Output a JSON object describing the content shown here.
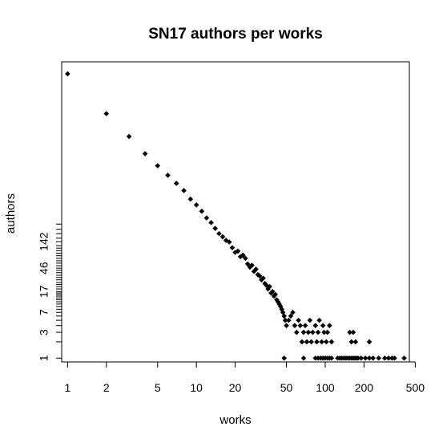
{
  "chart_data": {
    "type": "scatter",
    "title": "SN17 authors per works",
    "xlabel": "works",
    "ylabel": "authors",
    "x_scale": "log",
    "y_scale": "log",
    "xlim": [
      0.9,
      450
    ],
    "ylim": [
      0.85,
      300000
    ],
    "x_ticks": [
      1,
      2,
      5,
      10,
      20,
      50,
      100,
      200,
      500
    ],
    "x_tick_labels": [
      "1",
      "2",
      "5",
      "10",
      "20",
      "50",
      "100",
      "200",
      "500"
    ],
    "y_ticks": [
      1,
      3,
      7,
      17,
      46,
      142
    ],
    "y_tick_labels": [
      "1",
      "3",
      "7",
      "17",
      "46",
      "142"
    ],
    "y_rug": [
      1,
      2,
      3,
      4,
      5,
      6,
      7,
      8,
      9,
      10,
      11,
      12,
      13,
      14,
      15,
      16,
      17,
      19,
      21,
      23,
      25,
      28,
      31,
      34,
      38,
      42,
      46,
      51,
      57,
      63,
      70,
      78,
      87,
      97,
      108,
      120,
      142,
      165,
      200,
      240,
      300
    ],
    "grid": false,
    "legend": "none",
    "marker_color": "#000000",
    "points": [
      {
        "x": 1,
        "y": 180000
      },
      {
        "x": 2,
        "y": 33000
      },
      {
        "x": 3,
        "y": 12500
      },
      {
        "x": 4,
        "y": 6000
      },
      {
        "x": 5,
        "y": 3600
      },
      {
        "x": 6,
        "y": 2400
      },
      {
        "x": 7,
        "y": 1700
      },
      {
        "x": 8,
        "y": 1250
      },
      {
        "x": 9,
        "y": 870
      },
      {
        "x": 10,
        "y": 680
      },
      {
        "x": 11,
        "y": 520
      },
      {
        "x": 12,
        "y": 390
      },
      {
        "x": 13,
        "y": 320
      },
      {
        "x": 14,
        "y": 250
      },
      {
        "x": 15,
        "y": 200
      },
      {
        "x": 16,
        "y": 175
      },
      {
        "x": 17,
        "y": 150
      },
      {
        "x": 18,
        "y": 140
      },
      {
        "x": 19,
        "y": 110
      },
      {
        "x": 20,
        "y": 90
      },
      {
        "x": 21,
        "y": 95
      },
      {
        "x": 22,
        "y": 75
      },
      {
        "x": 23,
        "y": 80
      },
      {
        "x": 24,
        "y": 70
      },
      {
        "x": 25,
        "y": 55
      },
      {
        "x": 26,
        "y": 48
      },
      {
        "x": 27,
        "y": 52
      },
      {
        "x": 28,
        "y": 40
      },
      {
        "x": 29,
        "y": 44
      },
      {
        "x": 30,
        "y": 35
      },
      {
        "x": 31,
        "y": 33
      },
      {
        "x": 32,
        "y": 28
      },
      {
        "x": 33,
        "y": 30
      },
      {
        "x": 34,
        "y": 24
      },
      {
        "x": 35,
        "y": 22
      },
      {
        "x": 36,
        "y": 19
      },
      {
        "x": 37,
        "y": 21
      },
      {
        "x": 38,
        "y": 16
      },
      {
        "x": 39,
        "y": 17
      },
      {
        "x": 40,
        "y": 14
      },
      {
        "x": 41,
        "y": 15
      },
      {
        "x": 42,
        "y": 12
      },
      {
        "x": 43,
        "y": 11
      },
      {
        "x": 44,
        "y": 10
      },
      {
        "x": 45,
        "y": 9
      },
      {
        "x": 46,
        "y": 8
      },
      {
        "x": 47,
        "y": 7
      },
      {
        "x": 48,
        "y": 6
      },
      {
        "x": 49,
        "y": 5
      },
      {
        "x": 50,
        "y": 4
      },
      {
        "x": 52,
        "y": 5
      },
      {
        "x": 54,
        "y": 6
      },
      {
        "x": 56,
        "y": 7
      },
      {
        "x": 58,
        "y": 4
      },
      {
        "x": 60,
        "y": 3
      },
      {
        "x": 62,
        "y": 5
      },
      {
        "x": 64,
        "y": 4
      },
      {
        "x": 66,
        "y": 2
      },
      {
        "x": 68,
        "y": 3
      },
      {
        "x": 70,
        "y": 4
      },
      {
        "x": 72,
        "y": 2
      },
      {
        "x": 74,
        "y": 3
      },
      {
        "x": 76,
        "y": 5
      },
      {
        "x": 78,
        "y": 2
      },
      {
        "x": 80,
        "y": 3
      },
      {
        "x": 84,
        "y": 4
      },
      {
        "x": 86,
        "y": 2
      },
      {
        "x": 88,
        "y": 3
      },
      {
        "x": 90,
        "y": 5
      },
      {
        "x": 94,
        "y": 2
      },
      {
        "x": 96,
        "y": 4
      },
      {
        "x": 98,
        "y": 3
      },
      {
        "x": 102,
        "y": 2
      },
      {
        "x": 104,
        "y": 3
      },
      {
        "x": 108,
        "y": 4
      },
      {
        "x": 112,
        "y": 2
      },
      {
        "x": 155,
        "y": 3
      },
      {
        "x": 165,
        "y": 3
      },
      {
        "x": 160,
        "y": 2
      },
      {
        "x": 172,
        "y": 2
      },
      {
        "x": 220,
        "y": 2
      },
      {
        "x": 48,
        "y": 1
      },
      {
        "x": 68,
        "y": 1
      },
      {
        "x": 84,
        "y": 1
      },
      {
        "x": 88,
        "y": 1
      },
      {
        "x": 92,
        "y": 1
      },
      {
        "x": 96,
        "y": 1
      },
      {
        "x": 100,
        "y": 1
      },
      {
        "x": 104,
        "y": 1
      },
      {
        "x": 108,
        "y": 1
      },
      {
        "x": 112,
        "y": 1
      },
      {
        "x": 125,
        "y": 1
      },
      {
        "x": 130,
        "y": 1
      },
      {
        "x": 135,
        "y": 1
      },
      {
        "x": 140,
        "y": 1
      },
      {
        "x": 145,
        "y": 1
      },
      {
        "x": 150,
        "y": 1
      },
      {
        "x": 155,
        "y": 1
      },
      {
        "x": 160,
        "y": 1
      },
      {
        "x": 165,
        "y": 1
      },
      {
        "x": 170,
        "y": 1
      },
      {
        "x": 175,
        "y": 1
      },
      {
        "x": 180,
        "y": 1
      },
      {
        "x": 190,
        "y": 1
      },
      {
        "x": 205,
        "y": 1
      },
      {
        "x": 220,
        "y": 1
      },
      {
        "x": 235,
        "y": 1
      },
      {
        "x": 260,
        "y": 1
      },
      {
        "x": 290,
        "y": 1
      },
      {
        "x": 310,
        "y": 1
      },
      {
        "x": 330,
        "y": 1
      },
      {
        "x": 345,
        "y": 1
      },
      {
        "x": 410,
        "y": 1
      }
    ]
  }
}
